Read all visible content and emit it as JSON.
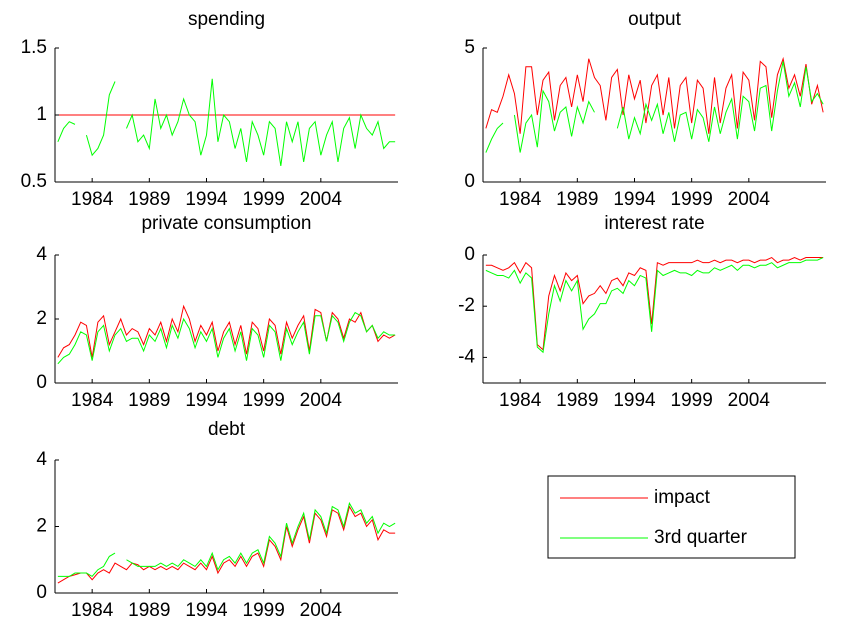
{
  "chart_data": [
    {
      "type": "line",
      "title": "spending",
      "x": [
        1981,
        1981.5,
        1982,
        1982.5,
        1983,
        1983.5,
        1984,
        1984.5,
        1985,
        1985.5,
        1986,
        1986.5,
        1987,
        1987.5,
        1988,
        1988.5,
        1989,
        1989.5,
        1990,
        1990.5,
        1991,
        1991.5,
        1992,
        1992.5,
        1993,
        1993.5,
        1994,
        1994.5,
        1995,
        1995.5,
        1996,
        1996.5,
        1997,
        1997.5,
        1998,
        1998.5,
        1999,
        1999.5,
        2000,
        2000.5,
        2001,
        2001.5,
        2002,
        2002.5,
        2003,
        2003.5,
        2004,
        2004.5,
        2005,
        2005.5,
        2006,
        2006.5,
        2007,
        2007.5,
        2008,
        2008.5,
        2009,
        2009.5,
        2010,
        2010.5
      ],
      "series": [
        {
          "name": "impact",
          "color": "#ff0000",
          "values": [
            1,
            1,
            1,
            1,
            1,
            1,
            1,
            1,
            1,
            1,
            1,
            1,
            1,
            1,
            1,
            1,
            1,
            1,
            1,
            1,
            1,
            1,
            1,
            1,
            1,
            1,
            1,
            1,
            1,
            1,
            1,
            1,
            1,
            1,
            1,
            1,
            1,
            1,
            1,
            1,
            1,
            1,
            1,
            1,
            1,
            1,
            1,
            1,
            1,
            1,
            1,
            1,
            1,
            1,
            1,
            1,
            1,
            1,
            1,
            1
          ]
        },
        {
          "name": "3rd quarter",
          "color": "#00ff00",
          "values": [
            0.8,
            0.9,
            0.95,
            0.93,
            null,
            0.85,
            0.7,
            0.75,
            0.85,
            1.15,
            1.25,
            null,
            0.9,
            1.0,
            0.8,
            0.85,
            0.75,
            1.12,
            0.9,
            1.0,
            0.85,
            0.95,
            1.12,
            1.0,
            0.95,
            0.7,
            0.85,
            1.27,
            0.8,
            1.0,
            0.95,
            0.75,
            0.9,
            0.65,
            0.95,
            0.85,
            0.7,
            0.95,
            0.9,
            0.62,
            0.95,
            0.8,
            0.95,
            0.65,
            0.9,
            0.95,
            0.7,
            0.85,
            0.95,
            0.65,
            0.9,
            0.98,
            0.75,
            1.0,
            0.9,
            0.85,
            0.95,
            0.75,
            0.8,
            0.8
          ]
        }
      ],
      "xlim": [
        1980.75,
        2010.75
      ],
      "xticks": [
        1984,
        1989,
        1994,
        1999,
        2004
      ],
      "ylim": [
        0.5,
        1.5
      ],
      "yticks": [
        0.5,
        1,
        1.5
      ]
    },
    {
      "type": "line",
      "title": "output",
      "x": [
        1981,
        1981.5,
        1982,
        1982.5,
        1983,
        1983.5,
        1984,
        1984.5,
        1985,
        1985.5,
        1986,
        1986.5,
        1987,
        1987.5,
        1988,
        1988.5,
        1989,
        1989.5,
        1990,
        1990.5,
        1991,
        1991.5,
        1992,
        1992.5,
        1993,
        1993.5,
        1994,
        1994.5,
        1995,
        1995.5,
        1996,
        1996.5,
        1997,
        1997.5,
        1998,
        1998.5,
        1999,
        1999.5,
        2000,
        2000.5,
        2001,
        2001.5,
        2002,
        2002.5,
        2003,
        2003.5,
        2004,
        2004.5,
        2005,
        2005.5,
        2006,
        2006.5,
        2007,
        2007.5,
        2008,
        2008.5,
        2009,
        2009.5,
        2010,
        2010.5
      ],
      "series": [
        {
          "name": "impact",
          "color": "#ff0000",
          "values": [
            2.0,
            2.7,
            2.6,
            3.2,
            4.0,
            3.3,
            1.8,
            4.3,
            4.3,
            2.5,
            3.8,
            4.1,
            2.3,
            3.6,
            3.9,
            2.8,
            4.0,
            3.0,
            4.6,
            3.9,
            3.6,
            2.3,
            3.9,
            4.2,
            2.5,
            4.0,
            3.1,
            3.8,
            2.2,
            3.6,
            4.0,
            2.5,
            3.9,
            2.0,
            3.6,
            3.9,
            2.2,
            3.8,
            3.5,
            1.8,
            3.9,
            2.2,
            3.5,
            4.0,
            2.0,
            4.1,
            3.8,
            2.3,
            4.5,
            4.3,
            2.4,
            4.0,
            4.6,
            3.5,
            4.0,
            3.2,
            4.4,
            2.9,
            3.6,
            2.6
          ]
        },
        {
          "name": "3rd quarter",
          "color": "#00ff00",
          "values": [
            1.1,
            1.6,
            2.0,
            2.2,
            null,
            2.5,
            1.1,
            2.2,
            2.5,
            1.3,
            3.4,
            3.0,
            1.9,
            2.6,
            2.8,
            1.7,
            2.8,
            2.2,
            3.0,
            2.6,
            null,
            2.3,
            null,
            2.0,
            2.8,
            1.6,
            2.4,
            1.8,
            2.9,
            2.3,
            2.9,
            1.8,
            2.6,
            1.5,
            2.5,
            2.6,
            1.6,
            2.7,
            2.4,
            1.5,
            2.8,
            1.8,
            2.6,
            3.1,
            1.6,
            3.2,
            3.0,
            1.9,
            3.5,
            3.6,
            1.9,
            3.4,
            4.5,
            3.2,
            3.7,
            2.8,
            4.3,
            3.0,
            3.3,
            2.9
          ]
        }
      ],
      "xlim": [
        1980.75,
        2010.75
      ],
      "xticks": [
        1984,
        1989,
        1994,
        1999,
        2004
      ],
      "ylim": [
        0,
        5
      ],
      "yticks": [
        0,
        5
      ]
    },
    {
      "type": "line",
      "title": "private consumption",
      "x": [
        1981,
        1981.5,
        1982,
        1982.5,
        1983,
        1983.5,
        1984,
        1984.5,
        1985,
        1985.5,
        1986,
        1986.5,
        1987,
        1987.5,
        1988,
        1988.5,
        1989,
        1989.5,
        1990,
        1990.5,
        1991,
        1991.5,
        1992,
        1992.5,
        1993,
        1993.5,
        1994,
        1994.5,
        1995,
        1995.5,
        1996,
        1996.5,
        1997,
        1997.5,
        1998,
        1998.5,
        1999,
        1999.5,
        2000,
        2000.5,
        2001,
        2001.5,
        2002,
        2002.5,
        2003,
        2003.5,
        2004,
        2004.5,
        2005,
        2005.5,
        2006,
        2006.5,
        2007,
        2007.5,
        2008,
        2008.5,
        2009,
        2009.5,
        2010,
        2010.5
      ],
      "series": [
        {
          "name": "impact",
          "color": "#ff0000",
          "values": [
            0.8,
            1.1,
            1.2,
            1.5,
            1.9,
            1.8,
            0.8,
            1.9,
            2.1,
            1.2,
            1.6,
            2.0,
            1.5,
            1.7,
            1.6,
            1.2,
            1.7,
            1.5,
            1.9,
            1.3,
            2.0,
            1.6,
            2.4,
            2.0,
            1.3,
            1.8,
            1.5,
            1.9,
            1.0,
            1.6,
            1.9,
            1.2,
            1.8,
            0.9,
            1.9,
            1.7,
            1.0,
            2.0,
            1.8,
            0.9,
            1.9,
            1.4,
            1.8,
            2.1,
            1.0,
            2.3,
            2.2,
            1.3,
            2.2,
            2.0,
            1.4,
            2.0,
            1.9,
            2.2,
            1.6,
            1.8,
            1.3,
            1.5,
            1.4,
            1.5
          ]
        },
        {
          "name": "3rd quarter",
          "color": "#00ff00",
          "values": [
            0.6,
            0.8,
            0.9,
            1.2,
            1.6,
            1.5,
            0.7,
            1.6,
            1.8,
            1.0,
            1.5,
            1.7,
            1.3,
            1.4,
            1.4,
            1.0,
            1.5,
            1.3,
            1.7,
            1.1,
            1.8,
            1.4,
            2.0,
            1.7,
            1.1,
            1.6,
            1.3,
            1.7,
            0.8,
            1.4,
            1.7,
            1.0,
            1.6,
            0.7,
            1.7,
            1.5,
            0.8,
            1.8,
            1.6,
            0.7,
            1.7,
            1.2,
            1.6,
            1.9,
            0.9,
            2.1,
            2.1,
            1.3,
            2.1,
            1.9,
            1.3,
            1.9,
            2.2,
            2.1,
            1.6,
            1.8,
            1.4,
            1.6,
            1.5,
            1.5
          ]
        }
      ],
      "xlim": [
        1980.75,
        2010.75
      ],
      "xticks": [
        1984,
        1989,
        1994,
        1999,
        2004
      ],
      "ylim": [
        0,
        4
      ],
      "yticks": [
        0,
        2,
        4
      ]
    },
    {
      "type": "line",
      "title": "interest rate",
      "x": [
        1981,
        1981.5,
        1982,
        1982.5,
        1983,
        1983.5,
        1984,
        1984.5,
        1985,
        1985.5,
        1986,
        1986.5,
        1987,
        1987.5,
        1988,
        1988.5,
        1989,
        1989.5,
        1990,
        1990.5,
        1991,
        1991.5,
        1992,
        1992.5,
        1993,
        1993.5,
        1994,
        1994.5,
        1995,
        1995.5,
        1996,
        1996.5,
        1997,
        1997.5,
        1998,
        1998.5,
        1999,
        1999.5,
        2000,
        2000.5,
        2001,
        2001.5,
        2002,
        2002.5,
        2003,
        2003.5,
        2004,
        2004.5,
        2005,
        2005.5,
        2006,
        2006.5,
        2007,
        2007.5,
        2008,
        2008.5,
        2009,
        2009.5,
        2010,
        2010.5
      ],
      "series": [
        {
          "name": "impact",
          "color": "#ff0000",
          "values": [
            -0.4,
            -0.4,
            -0.5,
            -0.6,
            -0.5,
            -0.3,
            -0.7,
            -0.3,
            -0.5,
            -3.5,
            -3.7,
            -1.6,
            -0.8,
            -1.4,
            -0.7,
            -1.0,
            -0.8,
            -1.9,
            -1.6,
            -1.5,
            -1.2,
            -1.5,
            -1.0,
            -0.9,
            -1.2,
            -0.7,
            -0.8,
            -0.5,
            -0.6,
            -2.7,
            -0.3,
            -0.4,
            -0.3,
            -0.3,
            -0.3,
            -0.3,
            -0.3,
            -0.2,
            -0.3,
            -0.3,
            -0.2,
            -0.3,
            -0.2,
            -0.2,
            -0.3,
            -0.2,
            -0.2,
            -0.3,
            -0.2,
            -0.2,
            -0.1,
            -0.3,
            -0.2,
            -0.2,
            -0.1,
            -0.2,
            -0.1,
            -0.1,
            -0.1,
            -0.1
          ]
        },
        {
          "name": "3rd quarter",
          "color": "#00ff00",
          "values": [
            -0.6,
            -0.7,
            -0.8,
            -0.8,
            -0.9,
            -0.6,
            -1.1,
            -0.7,
            -0.9,
            -3.6,
            -3.8,
            -2.3,
            -1.2,
            -1.8,
            -1.0,
            -1.4,
            -1.0,
            -2.9,
            -2.5,
            -2.3,
            -1.9,
            -1.9,
            -1.4,
            -1.3,
            -1.5,
            -1.0,
            -1.2,
            -0.8,
            -0.9,
            -3.0,
            -0.6,
            -0.8,
            -0.7,
            -0.6,
            -0.7,
            -0.7,
            -0.8,
            -0.6,
            -0.7,
            -0.7,
            -0.5,
            -0.6,
            -0.5,
            -0.4,
            -0.6,
            -0.4,
            -0.4,
            -0.5,
            -0.4,
            -0.4,
            -0.3,
            -0.5,
            -0.4,
            -0.3,
            -0.3,
            -0.3,
            -0.2,
            -0.2,
            -0.2,
            -0.1
          ]
        }
      ],
      "xlim": [
        1980.75,
        2010.75
      ],
      "xticks": [
        1984,
        1989,
        1994,
        1999,
        2004
      ],
      "ylim": [
        -5,
        0
      ],
      "yticks": [
        -4,
        -2,
        0
      ]
    },
    {
      "type": "line",
      "title": "debt",
      "x": [
        1981,
        1981.5,
        1982,
        1982.5,
        1983,
        1983.5,
        1984,
        1984.5,
        1985,
        1985.5,
        1986,
        1986.5,
        1987,
        1987.5,
        1988,
        1988.5,
        1989,
        1989.5,
        1990,
        1990.5,
        1991,
        1991.5,
        1992,
        1992.5,
        1993,
        1993.5,
        1994,
        1994.5,
        1995,
        1995.5,
        1996,
        1996.5,
        1997,
        1997.5,
        1998,
        1998.5,
        1999,
        1999.5,
        2000,
        2000.5,
        2001,
        2001.5,
        2002,
        2002.5,
        2003,
        2003.5,
        2004,
        2004.5,
        2005,
        2005.5,
        2006,
        2006.5,
        2007,
        2007.5,
        2008,
        2008.5,
        2009,
        2009.5,
        2010,
        2010.5
      ],
      "series": [
        {
          "name": "impact",
          "color": "#ff0000",
          "values": [
            0.3,
            0.4,
            0.5,
            0.55,
            0.6,
            0.6,
            0.4,
            0.6,
            0.7,
            0.6,
            0.9,
            0.8,
            0.7,
            0.9,
            0.85,
            0.7,
            0.8,
            0.7,
            0.8,
            0.7,
            0.8,
            0.7,
            0.9,
            0.8,
            0.7,
            0.9,
            0.7,
            1.1,
            0.6,
            0.9,
            1.0,
            0.8,
            1.1,
            0.8,
            1.1,
            1.2,
            0.8,
            1.6,
            1.4,
            1.0,
            2.0,
            1.4,
            1.9,
            2.3,
            1.5,
            2.4,
            2.2,
            1.7,
            2.5,
            2.4,
            1.9,
            2.6,
            2.3,
            2.4,
            2.0,
            2.2,
            1.6,
            1.9,
            1.8,
            1.8
          ]
        },
        {
          "name": "3rd quarter",
          "color": "#00ff00",
          "values": [
            0.5,
            0.5,
            0.5,
            0.6,
            0.6,
            0.6,
            0.5,
            0.7,
            0.8,
            1.1,
            1.2,
            null,
            1.0,
            0.9,
            0.8,
            0.8,
            0.8,
            0.8,
            0.9,
            0.8,
            0.9,
            0.8,
            1.0,
            0.9,
            0.8,
            1.0,
            0.8,
            1.2,
            0.7,
            1.0,
            1.1,
            0.9,
            1.2,
            0.9,
            1.2,
            1.3,
            0.9,
            1.7,
            1.5,
            1.1,
            2.1,
            1.5,
            2.0,
            2.4,
            1.6,
            2.5,
            2.3,
            1.8,
            2.6,
            2.5,
            2.0,
            2.7,
            2.4,
            2.5,
            2.1,
            2.3,
            1.8,
            2.1,
            2.0,
            2.1
          ]
        }
      ],
      "xlim": [
        1980.75,
        2010.75
      ],
      "xticks": [
        1984,
        1989,
        1994,
        1999,
        2004
      ],
      "ylim": [
        0,
        4
      ],
      "yticks": [
        0,
        2,
        4
      ]
    }
  ]
}
